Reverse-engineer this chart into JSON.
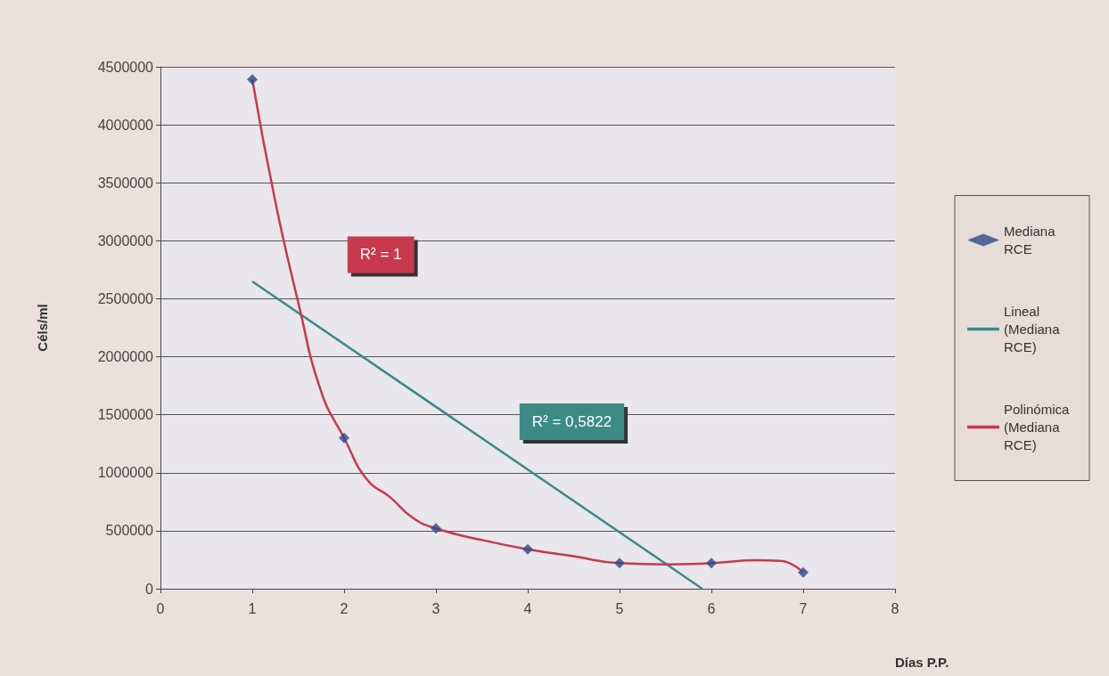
{
  "chart_data": {
    "type": "scatter",
    "xlabel": "Días P.P.",
    "ylabel": "Céls/ml",
    "xlim": [
      0,
      8
    ],
    "xticks": [
      0,
      1,
      2,
      3,
      4,
      5,
      6,
      7,
      8
    ],
    "ylim": [
      0,
      4500000
    ],
    "yticks": [
      0,
      500000,
      1000000,
      1500000,
      2000000,
      2500000,
      3000000,
      3500000,
      4000000,
      4500000
    ],
    "grid": "y",
    "legend": "right",
    "series": [
      {
        "name": "Mediana RCE",
        "marker": "diamond",
        "color": "#2b4a8a",
        "x": [
          1,
          2,
          3,
          4,
          5,
          6,
          7
        ],
        "values": [
          4390000,
          1300000,
          520000,
          340000,
          220000,
          220000,
          140000
        ]
      },
      {
        "name": "Lineal (Mediana RCE)",
        "type": "line",
        "marker": "none",
        "color": "#3a8a86",
        "x": [
          1,
          5.9
        ],
        "values": [
          2650000,
          0
        ]
      },
      {
        "name": "Polinómica (Mediana RCE)",
        "type": "line",
        "marker": "none",
        "color": "#c8384f",
        "x": [
          1,
          1.25,
          1.5,
          1.75,
          2,
          2.25,
          2.5,
          2.75,
          3,
          3.5,
          4,
          4.5,
          5,
          5.5,
          6,
          6.5,
          6.75,
          7
        ],
        "values": [
          4390000,
          3340000,
          2470000,
          1700000,
          1300000,
          940000,
          790000,
          610000,
          520000,
          420000,
          340000,
          280000,
          220000,
          210000,
          220000,
          245000,
          240000,
          140000
        ]
      }
    ],
    "annotations": [
      "R² = 1",
      "R² = 0,5822"
    ]
  }
}
